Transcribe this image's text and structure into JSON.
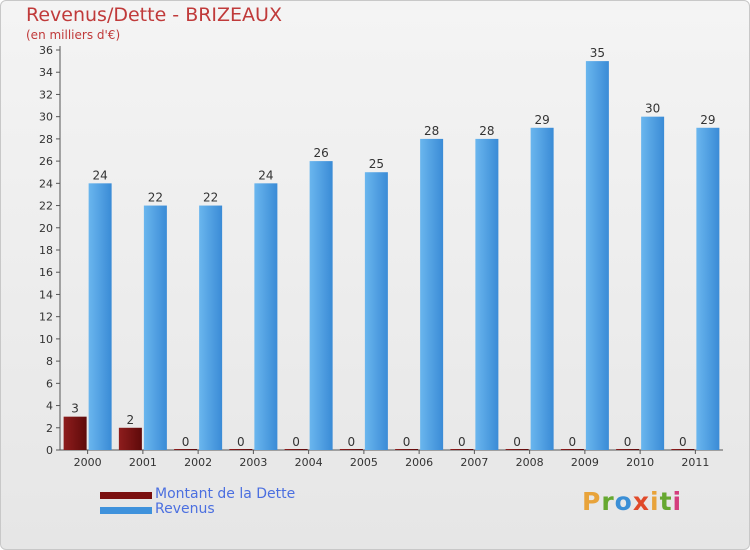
{
  "header": {
    "title": "Revenus/Dette - BRIZEAUX",
    "subtitle": "(en milliers d'€)"
  },
  "legend": {
    "items": [
      {
        "label": "Montant de la Dette",
        "color": "#7a0f0f"
      },
      {
        "label": "Revenus",
        "color": "#3f92dc"
      }
    ]
  },
  "logo": {
    "letters": [
      "P",
      "r",
      "o",
      "x",
      "i",
      "t",
      "i"
    ],
    "colors": [
      "#e8a33a",
      "#66a830",
      "#3b8fd6",
      "#e04a2a",
      "#e8a33a",
      "#66a830",
      "#d43d7d"
    ]
  },
  "chart_data": {
    "type": "bar",
    "title": "Revenus/Dette - BRIZEAUX",
    "subtitle": "(en milliers d'€)",
    "xlabel": "",
    "ylabel": "",
    "categories": [
      "2000",
      "2001",
      "2002",
      "2003",
      "2004",
      "2005",
      "2006",
      "2007",
      "2008",
      "2009",
      "2010",
      "2011"
    ],
    "series": [
      {
        "name": "Montant de la Dette",
        "color": "#7a0f0f",
        "values": [
          3,
          2,
          0,
          0,
          0,
          0,
          0,
          0,
          0,
          0,
          0,
          0
        ]
      },
      {
        "name": "Revenus",
        "color": "#3f92dc",
        "values": [
          24,
          22,
          22,
          24,
          26,
          25,
          28,
          28,
          29,
          35,
          30,
          29
        ]
      }
    ],
    "ylim": [
      0,
      36
    ],
    "yticks": [
      0,
      2,
      4,
      6,
      8,
      10,
      12,
      14,
      16,
      18,
      20,
      22,
      24,
      26,
      28,
      30,
      32,
      34,
      36
    ],
    "grid": false,
    "legend_position": "bottom-left"
  }
}
